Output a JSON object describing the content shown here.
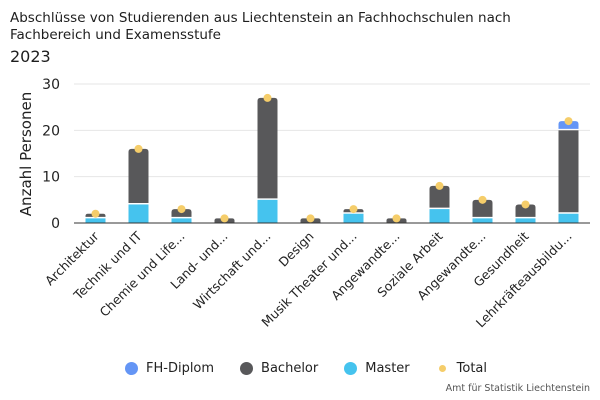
{
  "title": "Abschlüsse von Studierenden aus Liechtenstein an Fachhochschulen nach Fachbereich und Examensstufe",
  "subtitle": "2023",
  "credit": "Amt für Statistik Liechtenstein",
  "colors": {
    "fh_diplom": "#6495f5",
    "bachelor": "#58585a",
    "master": "#45c3ee",
    "total": "#f5cd6a",
    "grid": "#e6e6e6",
    "axis": "#333333"
  },
  "chart_data": {
    "type": "bar",
    "stacked": true,
    "title": "Abschlüsse von Studierenden aus Liechtenstein an Fachhochschulen nach Fachbereich und Examensstufe",
    "subtitle": "2023",
    "xlabel": "",
    "ylabel": "Anzahl Personen",
    "ylim": [
      0,
      30
    ],
    "yticks": [
      0,
      10,
      20,
      30
    ],
    "grid": true,
    "legend_position": "bottom",
    "categories": [
      "Architektur",
      "Technik und IT",
      "Chemie und Life...",
      "Land- und...",
      "Wirtschaft und...",
      "Design",
      "Musik Theater und...",
      "Angewandte...",
      "Soziale Arbeit",
      "Angewandte...",
      "Gesundheit",
      "Lehrkräfteausbildu..."
    ],
    "series": [
      {
        "name": "Master",
        "values": [
          1,
          4,
          1,
          0,
          5,
          0,
          2,
          0,
          3,
          1,
          1,
          2
        ]
      },
      {
        "name": "Bachelor",
        "values": [
          1,
          12,
          2,
          1,
          22,
          1,
          1,
          1,
          5,
          4,
          3,
          18
        ]
      },
      {
        "name": "FH-Diplom",
        "values": [
          0,
          0,
          0,
          0,
          0,
          0,
          0,
          0,
          0,
          0,
          0,
          2
        ]
      }
    ],
    "total": {
      "name": "Total",
      "values": [
        2,
        16,
        3,
        1,
        27,
        1,
        3,
        1,
        8,
        5,
        4,
        22
      ]
    },
    "legend": [
      "FH-Diplom",
      "Bachelor",
      "Master",
      "Total"
    ]
  }
}
